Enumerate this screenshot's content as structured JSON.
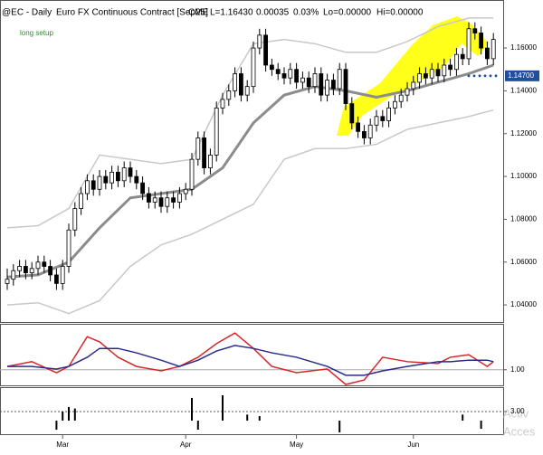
{
  "chart_data": {
    "type": "candlestick",
    "header": {
      "symbol": "@EC - Daily",
      "contract": "Euro FX Continuous Contract [Sep25]",
      "exchange": "CME",
      "last": "L=1.16430",
      "change": "0.00035",
      "change_pct": "0.03%",
      "low": "Lo=0.00000",
      "high": "Hi=0.00000"
    },
    "annotation": "long setup",
    "up_color": "#ffffff",
    "down_color": "#000000",
    "ylim": [
      1.032,
      1.182
    ],
    "yticks": [
      {
        "value": 1.04,
        "label": "1.04000"
      },
      {
        "value": 1.06,
        "label": "1.06000"
      },
      {
        "value": 1.08,
        "label": "1.08000"
      },
      {
        "value": 1.1,
        "label": "1.10000"
      },
      {
        "value": 1.12,
        "label": "1.12000"
      },
      {
        "value": 1.14,
        "label": "1.14000"
      },
      {
        "value": 1.16,
        "label": "1.16000"
      }
    ],
    "xticks": [
      {
        "value": 9,
        "label": "Mar"
      },
      {
        "value": 29,
        "label": "Apr"
      },
      {
        "value": 47,
        "label": "May"
      },
      {
        "value": 66,
        "label": "Jun"
      }
    ],
    "ohlc": [
      [
        1.05,
        1.057,
        1.047,
        1.052
      ],
      [
        1.052,
        1.059,
        1.049,
        1.056
      ],
      [
        1.056,
        1.061,
        1.053,
        1.058
      ],
      [
        1.058,
        1.061,
        1.052,
        1.055
      ],
      [
        1.055,
        1.06,
        1.052,
        1.057
      ],
      [
        1.057,
        1.063,
        1.054,
        1.06
      ],
      [
        1.06,
        1.063,
        1.055,
        1.058
      ],
      [
        1.058,
        1.061,
        1.051,
        1.054
      ],
      [
        1.054,
        1.057,
        1.047,
        1.05
      ],
      [
        1.05,
        1.061,
        1.047,
        1.058
      ],
      [
        1.058,
        1.078,
        1.055,
        1.075
      ],
      [
        1.075,
        1.088,
        1.072,
        1.085
      ],
      [
        1.085,
        1.095,
        1.082,
        1.092
      ],
      [
        1.092,
        1.101,
        1.089,
        1.098
      ],
      [
        1.098,
        1.101,
        1.091,
        1.094
      ],
      [
        1.094,
        1.103,
        1.091,
        1.1
      ],
      [
        1.1,
        1.103,
        1.094,
        1.097
      ],
      [
        1.097,
        1.105,
        1.094,
        1.102
      ],
      [
        1.102,
        1.105,
        1.095,
        1.098
      ],
      [
        1.098,
        1.107,
        1.095,
        1.104
      ],
      [
        1.104,
        1.107,
        1.097,
        1.1
      ],
      [
        1.1,
        1.103,
        1.094,
        1.097
      ],
      [
        1.097,
        1.1,
        1.089,
        1.092
      ],
      [
        1.092,
        1.095,
        1.085,
        1.088
      ],
      [
        1.088,
        1.093,
        1.085,
        1.09
      ],
      [
        1.09,
        1.093,
        1.083,
        1.086
      ],
      [
        1.086,
        1.093,
        1.083,
        1.09
      ],
      [
        1.09,
        1.093,
        1.085,
        1.088
      ],
      [
        1.088,
        1.095,
        1.085,
        1.092
      ],
      [
        1.092,
        1.097,
        1.089,
        1.094
      ],
      [
        1.094,
        1.111,
        1.091,
        1.108
      ],
      [
        1.108,
        1.121,
        1.105,
        1.118
      ],
      [
        1.118,
        1.121,
        1.101,
        1.104
      ],
      [
        1.104,
        1.113,
        1.101,
        1.11
      ],
      [
        1.11,
        1.135,
        1.107,
        1.132
      ],
      [
        1.132,
        1.139,
        1.129,
        1.136
      ],
      [
        1.136,
        1.143,
        1.133,
        1.14
      ],
      [
        1.14,
        1.151,
        1.137,
        1.148
      ],
      [
        1.148,
        1.151,
        1.135,
        1.138
      ],
      [
        1.138,
        1.145,
        1.135,
        1.142
      ],
      [
        1.142,
        1.163,
        1.139,
        1.16
      ],
      [
        1.16,
        1.169,
        1.157,
        1.166
      ],
      [
        1.166,
        1.169,
        1.149,
        1.152
      ],
      [
        1.152,
        1.155,
        1.147,
        1.15
      ],
      [
        1.15,
        1.153,
        1.145,
        1.148
      ],
      [
        1.148,
        1.151,
        1.143,
        1.146
      ],
      [
        1.146,
        1.153,
        1.143,
        1.15
      ],
      [
        1.15,
        1.153,
        1.141,
        1.144
      ],
      [
        1.144,
        1.149,
        1.141,
        1.146
      ],
      [
        1.146,
        1.149,
        1.139,
        1.142
      ],
      [
        1.142,
        1.151,
        1.139,
        1.148
      ],
      [
        1.148,
        1.151,
        1.135,
        1.138
      ],
      [
        1.138,
        1.148,
        1.135,
        1.145
      ],
      [
        1.145,
        1.148,
        1.138,
        1.141
      ],
      [
        1.141,
        1.153,
        1.138,
        1.15
      ],
      [
        1.15,
        1.153,
        1.131,
        1.134
      ],
      [
        1.134,
        1.137,
        1.122,
        1.125
      ],
      [
        1.125,
        1.128,
        1.118,
        1.121
      ],
      [
        1.121,
        1.124,
        1.115,
        1.118
      ],
      [
        1.118,
        1.127,
        1.115,
        1.124
      ],
      [
        1.124,
        1.131,
        1.121,
        1.128
      ],
      [
        1.128,
        1.131,
        1.123,
        1.126
      ],
      [
        1.126,
        1.135,
        1.123,
        1.132
      ],
      [
        1.132,
        1.138,
        1.129,
        1.135
      ],
      [
        1.135,
        1.141,
        1.132,
        1.138
      ],
      [
        1.138,
        1.144,
        1.135,
        1.141
      ],
      [
        1.141,
        1.147,
        1.138,
        1.144
      ],
      [
        1.144,
        1.151,
        1.141,
        1.148
      ],
      [
        1.148,
        1.151,
        1.143,
        1.146
      ],
      [
        1.146,
        1.153,
        1.143,
        1.15
      ],
      [
        1.15,
        1.153,
        1.144,
        1.147
      ],
      [
        1.147,
        1.155,
        1.144,
        1.152
      ],
      [
        1.152,
        1.155,
        1.147,
        1.15
      ],
      [
        1.15,
        1.16,
        1.147,
        1.157
      ],
      [
        1.157,
        1.16,
        1.152,
        1.155
      ],
      [
        1.155,
        1.172,
        1.152,
        1.169
      ],
      [
        1.169,
        1.172,
        1.164,
        1.167
      ],
      [
        1.167,
        1.17,
        1.157,
        1.16
      ],
      [
        1.16,
        1.163,
        1.152,
        1.155
      ],
      [
        1.155,
        1.167,
        1.152,
        1.164
      ]
    ],
    "overlays": [
      {
        "color": "#c8c8c8",
        "width": 1.5,
        "x": [
          0,
          5,
          10,
          15,
          20,
          25,
          30,
          35,
          40,
          45,
          50,
          55,
          60,
          65,
          70,
          75,
          79
        ],
        "values": [
          1.076,
          1.077,
          1.085,
          1.11,
          1.108,
          1.106,
          1.108,
          1.138,
          1.162,
          1.164,
          1.162,
          1.158,
          1.158,
          1.163,
          1.17,
          1.174,
          1.174
        ]
      },
      {
        "color": "#c8c8c8",
        "width": 1.5,
        "x": [
          0,
          5,
          10,
          15,
          20,
          25,
          30,
          35,
          40,
          45,
          50,
          55,
          60,
          65,
          70,
          75,
          79
        ],
        "values": [
          1.04,
          1.041,
          1.036,
          1.042,
          1.058,
          1.068,
          1.073,
          1.08,
          1.087,
          1.108,
          1.113,
          1.113,
          1.115,
          1.122,
          1.125,
          1.128,
          1.131
        ]
      },
      {
        "color": "#8c8c8c",
        "width": 3,
        "x": [
          0,
          5,
          10,
          15,
          20,
          25,
          30,
          35,
          40,
          45,
          50,
          55,
          60,
          65,
          70,
          75,
          79
        ],
        "values": [
          1.053,
          1.054,
          1.06,
          1.076,
          1.09,
          1.092,
          1.094,
          1.104,
          1.125,
          1.138,
          1.142,
          1.14,
          1.137,
          1.14,
          1.144,
          1.148,
          1.152
        ]
      }
    ],
    "price_tag": {
      "value": 1.147,
      "label": "1.14700",
      "color": "#1f4e9c"
    },
    "panels": [
      {
        "type": "line",
        "ylim": [
          0.6,
          2.2
        ],
        "yticks": [
          {
            "value": 1,
            "label": "1.00"
          }
        ],
        "series": [
          {
            "color": "#d62728",
            "x": [
              0,
              4,
              8,
              10,
              13,
              15,
              18,
              21,
              25,
              28,
              31,
              34,
              37,
              40,
              43,
              47,
              52,
              55,
              58,
              61,
              65,
              70,
              72,
              75,
              78,
              79
            ],
            "values": [
              1.09,
              1.22,
              0.92,
              1.09,
              1.9,
              1.76,
              1.34,
              1.09,
              0.97,
              1.09,
              1.34,
              1.71,
              2.0,
              1.58,
              1.09,
              0.92,
              1.02,
              0.6,
              0.72,
              1.34,
              1.22,
              1.17,
              1.34,
              1.41,
              1.09,
              1.22
            ]
          },
          {
            "color": "#2b2b8c",
            "x": [
              0,
              4,
              8,
              10,
              13,
              15,
              18,
              21,
              25,
              28,
              31,
              34,
              37,
              40,
              43,
              47,
              52,
              55,
              58,
              61,
              65,
              70,
              72,
              75,
              78,
              79
            ],
            "values": [
              1.09,
              1.09,
              1.02,
              1.09,
              1.34,
              1.58,
              1.58,
              1.46,
              1.26,
              1.09,
              1.26,
              1.51,
              1.66,
              1.58,
              1.46,
              1.34,
              1.09,
              0.85,
              0.85,
              0.97,
              1.09,
              1.22,
              1.22,
              1.26,
              1.26,
              1.22
            ]
          }
        ]
      },
      {
        "type": "bar",
        "ylim": [
          -4.5,
          10
        ],
        "yticks": [
          {
            "value": 3,
            "label": "3.00"
          }
        ],
        "color": "#000000",
        "x": [
          8,
          9,
          10,
          11,
          30,
          31,
          35,
          39,
          41,
          54,
          74,
          77
        ],
        "values": [
          -3,
          3,
          4.5,
          4,
          7.5,
          -3,
          8.4,
          2,
          1.5,
          -3.9,
          2,
          -2.7
        ]
      }
    ],
    "watermark": [
      "Activ",
      "Acces"
    ]
  }
}
